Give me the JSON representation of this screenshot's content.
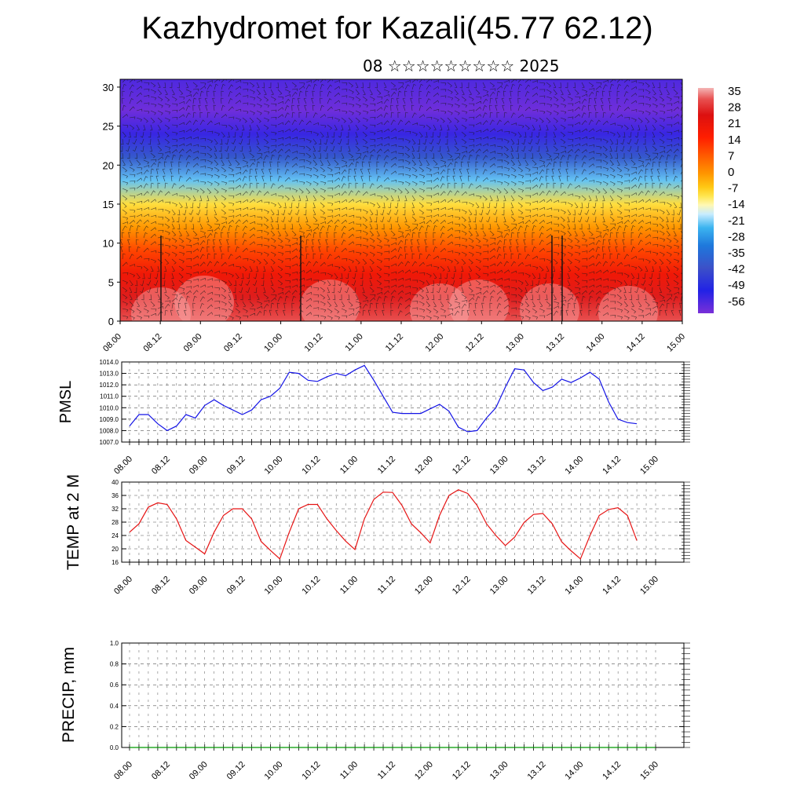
{
  "title": "Kazhydromet for Kazali(45.77 62.12)",
  "subtitle": "08 ☆☆☆☆☆☆☆☆☆ 2025",
  "time_ticks": [
    "08.00",
    "08.12",
    "09.00",
    "09.12",
    "10.00",
    "10.12",
    "11.00",
    "11.12",
    "12.00",
    "12.12",
    "13.00",
    "13.12",
    "14.00",
    "14.12",
    "15.00"
  ],
  "chart_data": [
    {
      "type": "heatmap",
      "id": "cross-section",
      "title": "",
      "xlabel": "",
      "ylabel": "",
      "ylim": [
        0,
        31
      ],
      "yticks": [
        "0",
        "5",
        "10",
        "15",
        "20",
        "25",
        "30"
      ],
      "colorbar": {
        "labels": [
          "35",
          "28",
          "21",
          "14",
          "7",
          "0",
          "-7",
          "-14",
          "-21",
          "-28",
          "-35",
          "-42",
          "-49",
          "-56"
        ],
        "colors": [
          "#f2a0a0",
          "#e84040",
          "#e01010",
          "#ff2a00",
          "#ff6a00",
          "#ffa500",
          "#ffd21e",
          "#fff08c",
          "#c8e6ff",
          "#3cb4f0",
          "#1e78dc",
          "#3c50c8",
          "#2828e0",
          "#6a2ad8"
        ]
      },
      "temperature_profile": {
        "height": [
          0,
          3,
          6,
          9,
          12,
          15,
          18,
          21,
          24,
          27,
          31
        ],
        "temp": [
          30,
          26,
          21,
          13,
          3,
          -7,
          -22,
          -40,
          -52,
          -57,
          -54
        ]
      },
      "wind_barbs": true
    },
    {
      "type": "line",
      "id": "pmsl",
      "ylabel": "PMSL",
      "ylim": [
        1007,
        1014
      ],
      "yticks": [
        "1007.0",
        "1008.0",
        "1009.0",
        "1010.0",
        "1011.0",
        "1012.0",
        "1013.0",
        "1014.0"
      ],
      "xlim": [
        0,
        14
      ],
      "color": "#1414e6",
      "x": [
        0,
        0.25,
        0.5,
        0.75,
        1,
        1.25,
        1.5,
        1.75,
        2,
        2.25,
        2.5,
        2.75,
        3,
        3.25,
        3.5,
        3.75,
        4,
        4.25,
        4.5,
        4.75,
        5,
        5.25,
        5.5,
        5.75,
        6,
        6.25,
        6.5,
        6.75,
        7,
        7.25,
        7.5,
        7.75,
        8,
        8.25,
        8.5,
        8.75,
        9,
        9.25,
        9.5,
        9.75,
        10,
        10.25,
        10.5,
        10.75,
        11,
        11.25,
        11.5,
        11.75,
        12,
        12.25,
        12.5,
        12.75,
        13,
        13.25,
        13.5
      ],
      "values": [
        1008.4,
        1009.4,
        1009.4,
        1008.6,
        1008.0,
        1008.4,
        1009.4,
        1009.1,
        1010.2,
        1010.7,
        1010.2,
        1009.8,
        1009.4,
        1009.8,
        1010.7,
        1011.0,
        1011.7,
        1013.1,
        1013.0,
        1012.4,
        1012.3,
        1012.7,
        1013.0,
        1012.8,
        1013.3,
        1013.7,
        1012.4,
        1011.0,
        1009.6,
        1009.5,
        1009.5,
        1009.5,
        1009.9,
        1010.3,
        1009.7,
        1008.3,
        1007.9,
        1008.0,
        1009.1,
        1010.0,
        1011.8,
        1013.4,
        1013.3,
        1012.2,
        1011.5,
        1011.8,
        1012.5,
        1012.2,
        1012.6,
        1013.1,
        1012.5,
        1010.5,
        1009.0,
        1008.7,
        1008.6
      ]
    },
    {
      "type": "line",
      "id": "temp2m",
      "ylabel": "TEMP at 2 M",
      "ylim": [
        16,
        40
      ],
      "yticks": [
        "16",
        "20",
        "24",
        "28",
        "32",
        "36",
        "40"
      ],
      "xlim": [
        0,
        14
      ],
      "color": "#e61414",
      "x": [
        0,
        0.25,
        0.5,
        0.75,
        1,
        1.25,
        1.5,
        1.75,
        2,
        2.25,
        2.5,
        2.75,
        3,
        3.25,
        3.5,
        3.75,
        4,
        4.25,
        4.5,
        4.75,
        5,
        5.25,
        5.5,
        5.75,
        6,
        6.25,
        6.5,
        6.75,
        7,
        7.25,
        7.5,
        7.75,
        8,
        8.25,
        8.5,
        8.75,
        9,
        9.25,
        9.5,
        9.75,
        10,
        10.25,
        10.5,
        10.75,
        11,
        11.25,
        11.5,
        11.75,
        12,
        12.25,
        12.5,
        12.75,
        13,
        13.25,
        13.5
      ],
      "values": [
        25,
        27.5,
        32.5,
        33.8,
        33.3,
        29,
        22.5,
        20.5,
        18.5,
        25,
        30,
        32,
        32,
        29,
        22.2,
        19.5,
        17,
        25,
        32,
        33.3,
        33.3,
        29,
        25.5,
        22.3,
        19.8,
        29,
        34.8,
        37,
        36.9,
        33,
        27.5,
        24.8,
        21.8,
        30,
        36,
        37.7,
        36.6,
        33,
        27.5,
        24,
        21,
        23.5,
        27.9,
        30.3,
        30.6,
        27.5,
        22.1,
        19.4,
        17,
        23.9,
        30,
        31.8,
        32.3,
        30,
        22.5
      ]
    },
    {
      "type": "line",
      "id": "precip",
      "ylabel": "PRECIP, mm",
      "ylim": [
        0,
        1
      ],
      "yticks": [
        "0.0",
        "0.2",
        "0.4",
        "0.6",
        "0.8",
        "1.0"
      ],
      "xlim": [
        0,
        14
      ],
      "color": "#009900",
      "x": [
        0,
        14
      ],
      "values": [
        0,
        0
      ]
    }
  ]
}
